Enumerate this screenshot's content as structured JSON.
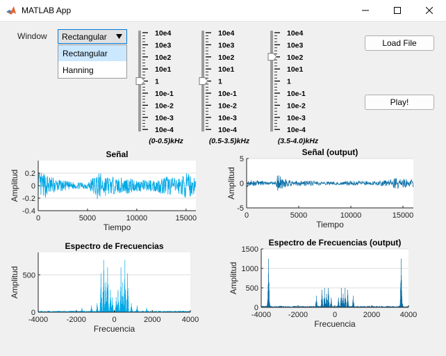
{
  "window": {
    "title": "MATLAB App"
  },
  "controls": {
    "window_label": "Window",
    "dropdown": {
      "value": "Rectangular",
      "options": [
        "Rectangular",
        "Hanning"
      ]
    },
    "load_button": "Load File",
    "play_button": "Play!"
  },
  "sliders": {
    "tick_labels": [
      "10e4",
      "10e3",
      "10e2",
      "10e1",
      "1",
      "10e-1",
      "10e-2",
      "10e-3",
      "10e-4"
    ],
    "bands": [
      {
        "label": "(0-0.5)kHz",
        "value": "1"
      },
      {
        "label": "(0.5-3.5)kHz",
        "value": "1"
      },
      {
        "label": "(3.5-4.0)kHz",
        "value": "10e2"
      }
    ]
  },
  "colors": {
    "signal": "#00a8e6",
    "output": "#0a6ea6",
    "grid": "#dcdcdc"
  },
  "chart_data": [
    {
      "type": "line",
      "title": "Señal",
      "xlabel": "Tiempo",
      "ylabel": "Amplitud",
      "xlim": [
        0,
        16000
      ],
      "ylim": [
        -0.4,
        0.4
      ],
      "xticks": [
        0,
        5000,
        10000,
        15000
      ],
      "yticks": [
        -0.4,
        -0.2,
        0,
        0.2
      ],
      "ytick_labels": [
        "-0.4",
        "-0.2",
        "0",
        "0.2"
      ],
      "series": [
        {
          "envelope": [
            [
              0,
              0.22
            ],
            [
              1000,
              0.18
            ],
            [
              2000,
              0.1
            ],
            [
              3000,
              0.07
            ],
            [
              4000,
              0.05
            ],
            [
              5000,
              0.06
            ],
            [
              6000,
              0.22
            ],
            [
              7000,
              0.16
            ],
            [
              8000,
              0.12
            ],
            [
              9000,
              0.14
            ],
            [
              10000,
              0.1
            ],
            [
              11000,
              0.09
            ],
            [
              12000,
              0.1
            ],
            [
              13000,
              0.16
            ],
            [
              14000,
              0.12
            ],
            [
              15000,
              0.2
            ],
            [
              16000,
              0.15
            ]
          ]
        }
      ]
    },
    {
      "type": "line",
      "title": "Señal (output)",
      "xlabel": "Tiempo",
      "ylabel": "Amplitud",
      "xlim": [
        0,
        16000
      ],
      "ylim": [
        -5,
        5
      ],
      "xticks": [
        0,
        5000,
        10000,
        15000
      ],
      "yticks": [
        -5,
        0,
        5
      ],
      "ytick_labels": [
        "-5",
        "0",
        "5"
      ],
      "series": [
        {
          "envelope": [
            [
              0,
              0.8
            ],
            [
              1000,
              0.5
            ],
            [
              2000,
              0.3
            ],
            [
              2800,
              0.4
            ],
            [
              3000,
              2.0
            ],
            [
              3500,
              1.0
            ],
            [
              4500,
              0.5
            ],
            [
              6000,
              0.6
            ],
            [
              7000,
              0.4
            ],
            [
              9000,
              0.3
            ],
            [
              10000,
              0.5
            ],
            [
              12000,
              0.4
            ],
            [
              13500,
              0.6
            ],
            [
              14500,
              1.2
            ],
            [
              15500,
              0.8
            ],
            [
              16000,
              1.0
            ]
          ]
        }
      ]
    },
    {
      "type": "line",
      "title": "Espectro de Frecuencias",
      "xlabel": "Frecuencia",
      "ylabel": "Amplitud",
      "xlim": [
        -4000,
        4000
      ],
      "ylim": [
        0,
        800
      ],
      "xticks": [
        -4000,
        -2000,
        0,
        2000,
        4000
      ],
      "yticks": [
        0,
        500
      ],
      "ytick_labels": [
        "0",
        "500"
      ],
      "series": [
        {
          "peaks": [
            [
              -1700,
              60
            ],
            [
              -1200,
              90
            ],
            [
              -900,
              120
            ],
            [
              -700,
              520
            ],
            [
              -560,
              700
            ],
            [
              -450,
              400
            ],
            [
              -350,
              600
            ],
            [
              -200,
              300
            ],
            [
              -100,
              200
            ],
            [
              100,
              200
            ],
            [
              200,
              300
            ],
            [
              350,
              600
            ],
            [
              450,
              400
            ],
            [
              560,
              700
            ],
            [
              700,
              520
            ],
            [
              900,
              120
            ],
            [
              1200,
              90
            ],
            [
              1700,
              60
            ]
          ]
        }
      ]
    },
    {
      "type": "line",
      "title": "Espectro de Frecuencias (output)",
      "xlabel": "Frecuencia",
      "ylabel": "Amplitud",
      "xlim": [
        -4000,
        4000
      ],
      "ylim": [
        0,
        1500
      ],
      "xticks": [
        -4000,
        -2000,
        0,
        2000,
        4000
      ],
      "yticks": [
        0,
        500,
        1000,
        1500
      ],
      "ytick_labels": [
        "0",
        "500",
        "1000",
        "1500"
      ],
      "series": [
        {
          "peaks": [
            [
              -3600,
              1250
            ],
            [
              -3650,
              200
            ],
            [
              -3550,
              150
            ],
            [
              -1000,
              300
            ],
            [
              -700,
              450
            ],
            [
              -560,
              500
            ],
            [
              -450,
              350
            ],
            [
              -350,
              500
            ],
            [
              -200,
              250
            ],
            [
              200,
              250
            ],
            [
              350,
              500
            ],
            [
              450,
              350
            ],
            [
              560,
              500
            ],
            [
              700,
              450
            ],
            [
              1000,
              300
            ],
            [
              3550,
              150
            ],
            [
              3650,
              200
            ],
            [
              3600,
              1250
            ]
          ]
        }
      ]
    }
  ]
}
